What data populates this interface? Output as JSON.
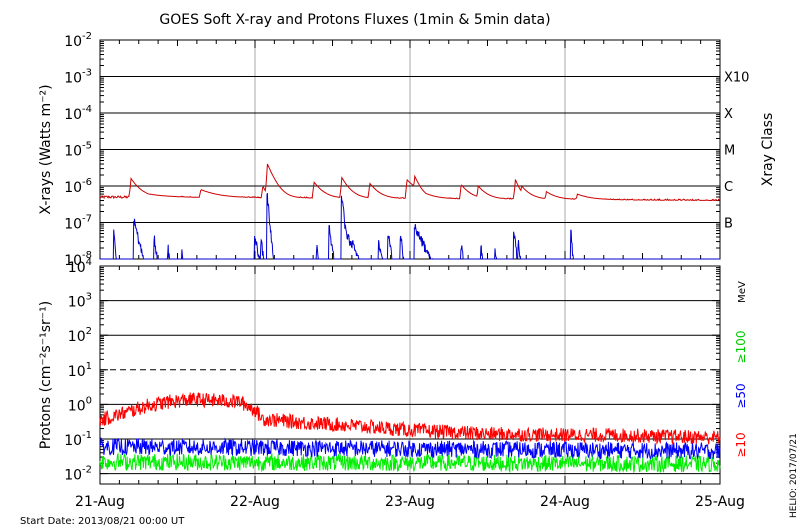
{
  "title": "GOES Soft X-ray and Protons Fluxes   (1min & 5min data)",
  "footer": {
    "start_date": "Start Date: 2013/08/21 00:00 UT",
    "credit": "HELIO: 2017/07/21"
  },
  "colors": {
    "xray_long": "#cc0000",
    "xray_short": "#0000cc",
    "p10": "#ff0000",
    "p50": "#0000ff",
    "p100": "#00ee00",
    "axis": "#000000",
    "vgrid": "#aaaaaa"
  },
  "chart_data": [
    {
      "type": "line",
      "panel": "xray",
      "ylabel": "X-rays (Watts m⁻²)",
      "yscale": "log",
      "ylim": [
        1e-08,
        0.01
      ],
      "y_ticks": [
        {
          "exp": -8,
          "base": "10",
          "sup": "-8"
        },
        {
          "exp": -7,
          "base": "10",
          "sup": "-7"
        },
        {
          "exp": -6,
          "base": "10",
          "sup": "-6"
        },
        {
          "exp": -5,
          "base": "10",
          "sup": "-5"
        },
        {
          "exp": -4,
          "base": "10",
          "sup": "-4"
        },
        {
          "exp": -3,
          "base": "10",
          "sup": "-3"
        },
        {
          "exp": -2,
          "base": "10",
          "sup": "-2"
        }
      ],
      "right_label": "Xray Class",
      "class_labels": [
        {
          "label": "B",
          "exp": -7
        },
        {
          "label": "C",
          "exp": -6
        },
        {
          "label": "M",
          "exp": -5
        },
        {
          "label": "X",
          "exp": -4
        },
        {
          "label": "X10",
          "exp": -3
        }
      ],
      "grid": "horizontal lines at each decade from 1e-7 to 1e-3",
      "series": [
        {
          "color": "#cc0000",
          "baseline": 5e-07,
          "noise": 0.08,
          "peaks": [
            [
              0.2,
              1.6e-06,
              0.05
            ],
            [
              0.24,
              7e-07,
              0.12
            ],
            [
              0.65,
              8e-07,
              0.1
            ],
            [
              1.05,
              1e-06,
              0.025
            ],
            [
              1.08,
              4e-06,
              0.04
            ],
            [
              1.38,
              1.3e-06,
              0.05
            ],
            [
              1.56,
              1.7e-06,
              0.045
            ],
            [
              1.74,
              1.2e-06,
              0.05
            ],
            [
              1.98,
              1.5e-06,
              0.07
            ],
            [
              2.03,
              1.9e-06,
              0.035
            ],
            [
              2.33,
              1.1e-06,
              0.05
            ],
            [
              2.44,
              1e-06,
              0.05
            ],
            [
              2.68,
              1.5e-06,
              0.03
            ],
            [
              2.72,
              1e-06,
              0.05
            ],
            [
              2.88,
              7e-07,
              0.06
            ],
            [
              3.08,
              6e-07,
              0.08
            ]
          ],
          "trend_end": 4e-07
        },
        {
          "color": "#0000cc",
          "floor": 1e-08,
          "events": [
            [
              0.09,
              5e-08,
              0.008
            ],
            [
              0.22,
              1.1e-07,
              0.025
            ],
            [
              0.35,
              4e-08,
              0.015
            ],
            [
              0.44,
              2e-08,
              0.01
            ],
            [
              0.53,
              1.5e-08,
              0.01
            ],
            [
              1.0,
              4e-08,
              0.02
            ],
            [
              1.04,
              3e-08,
              0.015
            ],
            [
              1.08,
              5e-07,
              0.01
            ],
            [
              1.1,
              2e-08,
              0.02
            ],
            [
              1.4,
              2e-08,
              0.01
            ],
            [
              1.48,
              7e-08,
              0.015
            ],
            [
              1.56,
              5e-07,
              0.012
            ],
            [
              1.58,
              6e-08,
              0.05
            ],
            [
              1.63,
              3e-08,
              0.03
            ],
            [
              1.8,
              3e-08,
              0.02
            ],
            [
              1.86,
              5e-08,
              0.015
            ],
            [
              1.94,
              5e-08,
              0.01
            ],
            [
              2.03,
              8e-08,
              0.05
            ],
            [
              2.33,
              2.5e-08,
              0.015
            ],
            [
              2.46,
              2e-08,
              0.01
            ],
            [
              2.55,
              2e-08,
              0.01
            ],
            [
              2.67,
              6e-08,
              0.012
            ],
            [
              2.7,
              3e-08,
              0.01
            ],
            [
              3.04,
              5e-08,
              0.008
            ]
          ]
        }
      ]
    },
    {
      "type": "line",
      "panel": "protons",
      "ylabel": "Protons (cm⁻²s⁻¹sr⁻¹)",
      "yscale": "log",
      "ylim": [
        0.005,
        10000
      ],
      "y_ticks": [
        {
          "exp": -2,
          "base": "10",
          "sup": "-2"
        },
        {
          "exp": -1,
          "base": "10",
          "sup": "-1"
        },
        {
          "exp": 0,
          "base": "10",
          "sup": "0"
        },
        {
          "exp": 1,
          "base": "10",
          "sup": "1"
        },
        {
          "exp": 2,
          "base": "10",
          "sup": "2"
        },
        {
          "exp": 3,
          "base": "10",
          "sup": "3"
        },
        {
          "exp": 4,
          "base": "10",
          "sup": "4"
        }
      ],
      "unit_label": "MeV",
      "energy_labels": [
        {
          "text": "≥10",
          "color": "#ff0000"
        },
        {
          "text": "≥50",
          "color": "#0000ff"
        },
        {
          "text": "≥100",
          "color": "#00cc00"
        }
      ],
      "threshold": 10,
      "grid": "horizontal lines at 1e-1, 1, 1e2, 1e3; dashed line at 1e1",
      "series": [
        {
          "color": "#ff0000",
          "label": "≥10",
          "profile": [
            [
              0.0,
              0.35
            ],
            [
              0.15,
              0.55
            ],
            [
              0.3,
              0.9
            ],
            [
              0.45,
              1.2
            ],
            [
              0.6,
              1.4
            ],
            [
              0.9,
              1.2
            ],
            [
              1.0,
              0.7
            ],
            [
              1.05,
              0.38
            ],
            [
              1.3,
              0.3
            ],
            [
              1.6,
              0.25
            ],
            [
              2.0,
              0.18
            ],
            [
              2.5,
              0.14
            ],
            [
              3.0,
              0.13
            ],
            [
              3.3,
              0.13
            ],
            [
              3.6,
              0.12
            ],
            [
              4.0,
              0.11
            ]
          ],
          "noise": 0.3
        },
        {
          "color": "#0000ff",
          "label": "≥50",
          "profile": [
            [
              0.0,
              0.06
            ],
            [
              4.0,
              0.045
            ]
          ],
          "noise": 0.35
        },
        {
          "color": "#00ee00",
          "label": "≥100",
          "profile": [
            [
              0.0,
              0.022
            ],
            [
              4.0,
              0.019
            ]
          ],
          "noise": 0.35
        }
      ]
    }
  ],
  "x_axis": {
    "xlim": [
      "2013-08-21 00:00",
      "2013-08-25 00:00"
    ],
    "ticks": [
      "21-Aug",
      "22-Aug",
      "23-Aug",
      "24-Aug",
      "25-Aug"
    ]
  }
}
